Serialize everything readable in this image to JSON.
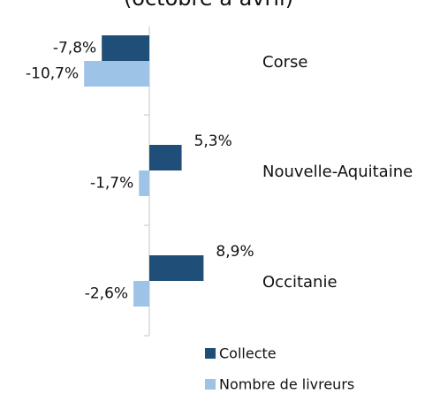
{
  "chart_data": {
    "type": "bar",
    "orientation": "horizontal",
    "title": "(octobre à avril)",
    "categories": [
      "Corse",
      "Nouvelle-Aquitaine",
      "Occitanie"
    ],
    "series": [
      {
        "name": "Collecte",
        "color": "#1f4e79",
        "values": [
          -7.8,
          5.3,
          8.9
        ],
        "value_labels": [
          "-7,8%",
          "5,3%",
          "8,9%"
        ]
      },
      {
        "name": "Nombre de livreurs",
        "color": "#9dc3e6",
        "values": [
          -10.7,
          -1.7,
          -2.6
        ],
        "value_labels": [
          "-10,7%",
          "-1,7%",
          "-2,6%"
        ]
      }
    ],
    "legend": "bottom"
  }
}
